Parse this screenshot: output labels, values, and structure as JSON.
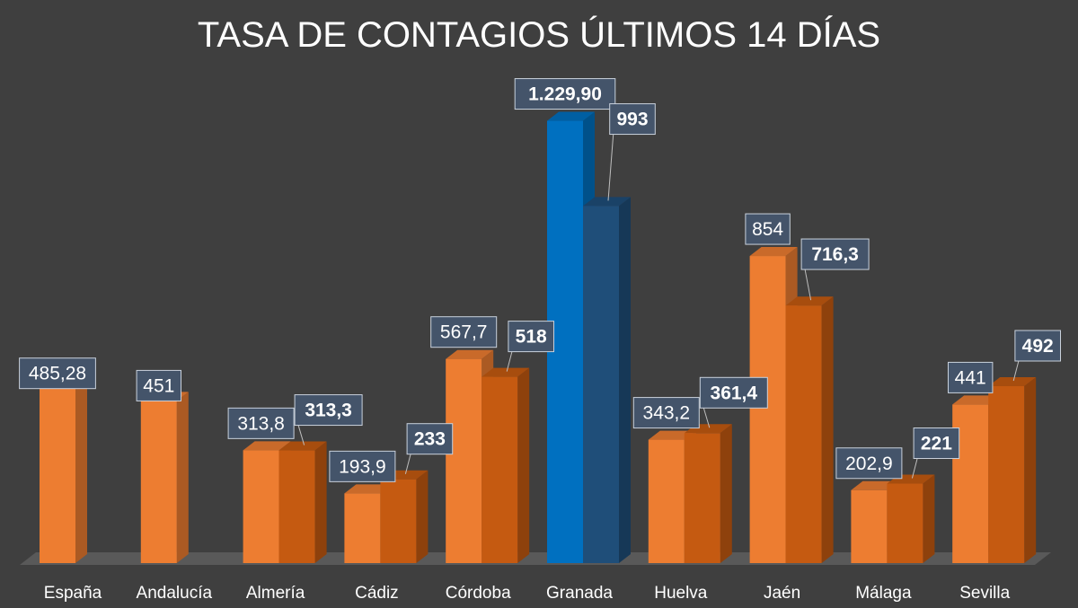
{
  "chart_data": {
    "type": "bar",
    "title": "TASA DE CONTAGIOS ÚLTIMOS 14 DÍAS",
    "xlabel": "",
    "ylabel": "",
    "ylim": [
      0,
      1300
    ],
    "grid": false,
    "legend": "none",
    "categories": [
      "España",
      "Andalucía",
      "Almería",
      "Cádiz",
      "Córdoba",
      "Granada",
      "Huelva",
      "Jaén",
      "Málaga",
      "Sevilla"
    ],
    "series": [
      {
        "values": [
          485.28,
          451,
          313.8,
          193.9,
          567.7,
          1229.9,
          343.2,
          854,
          202.9,
          441
        ],
        "labels": [
          "485,28",
          "451",
          "313,8",
          "193,9",
          "567,7",
          "1.229,90",
          "343,2",
          "854",
          "202,9",
          "441"
        ]
      },
      {
        "values": [
          null,
          null,
          313.3,
          233,
          518,
          993,
          361.4,
          716.3,
          221,
          492
        ],
        "labels": [
          "",
          "",
          "313,3",
          "233",
          "518",
          "993",
          "361,4",
          "716,3",
          "221",
          "492"
        ]
      }
    ],
    "colors": {
      "background": "#3f3f3f",
      "series1": "#ed7d31",
      "series2": "#c55a11",
      "highlight1": "#0070c0",
      "highlight2": "#1f4e79",
      "label_box": "#44546a",
      "floor": "#595959"
    },
    "highlight_category": "Granada"
  }
}
